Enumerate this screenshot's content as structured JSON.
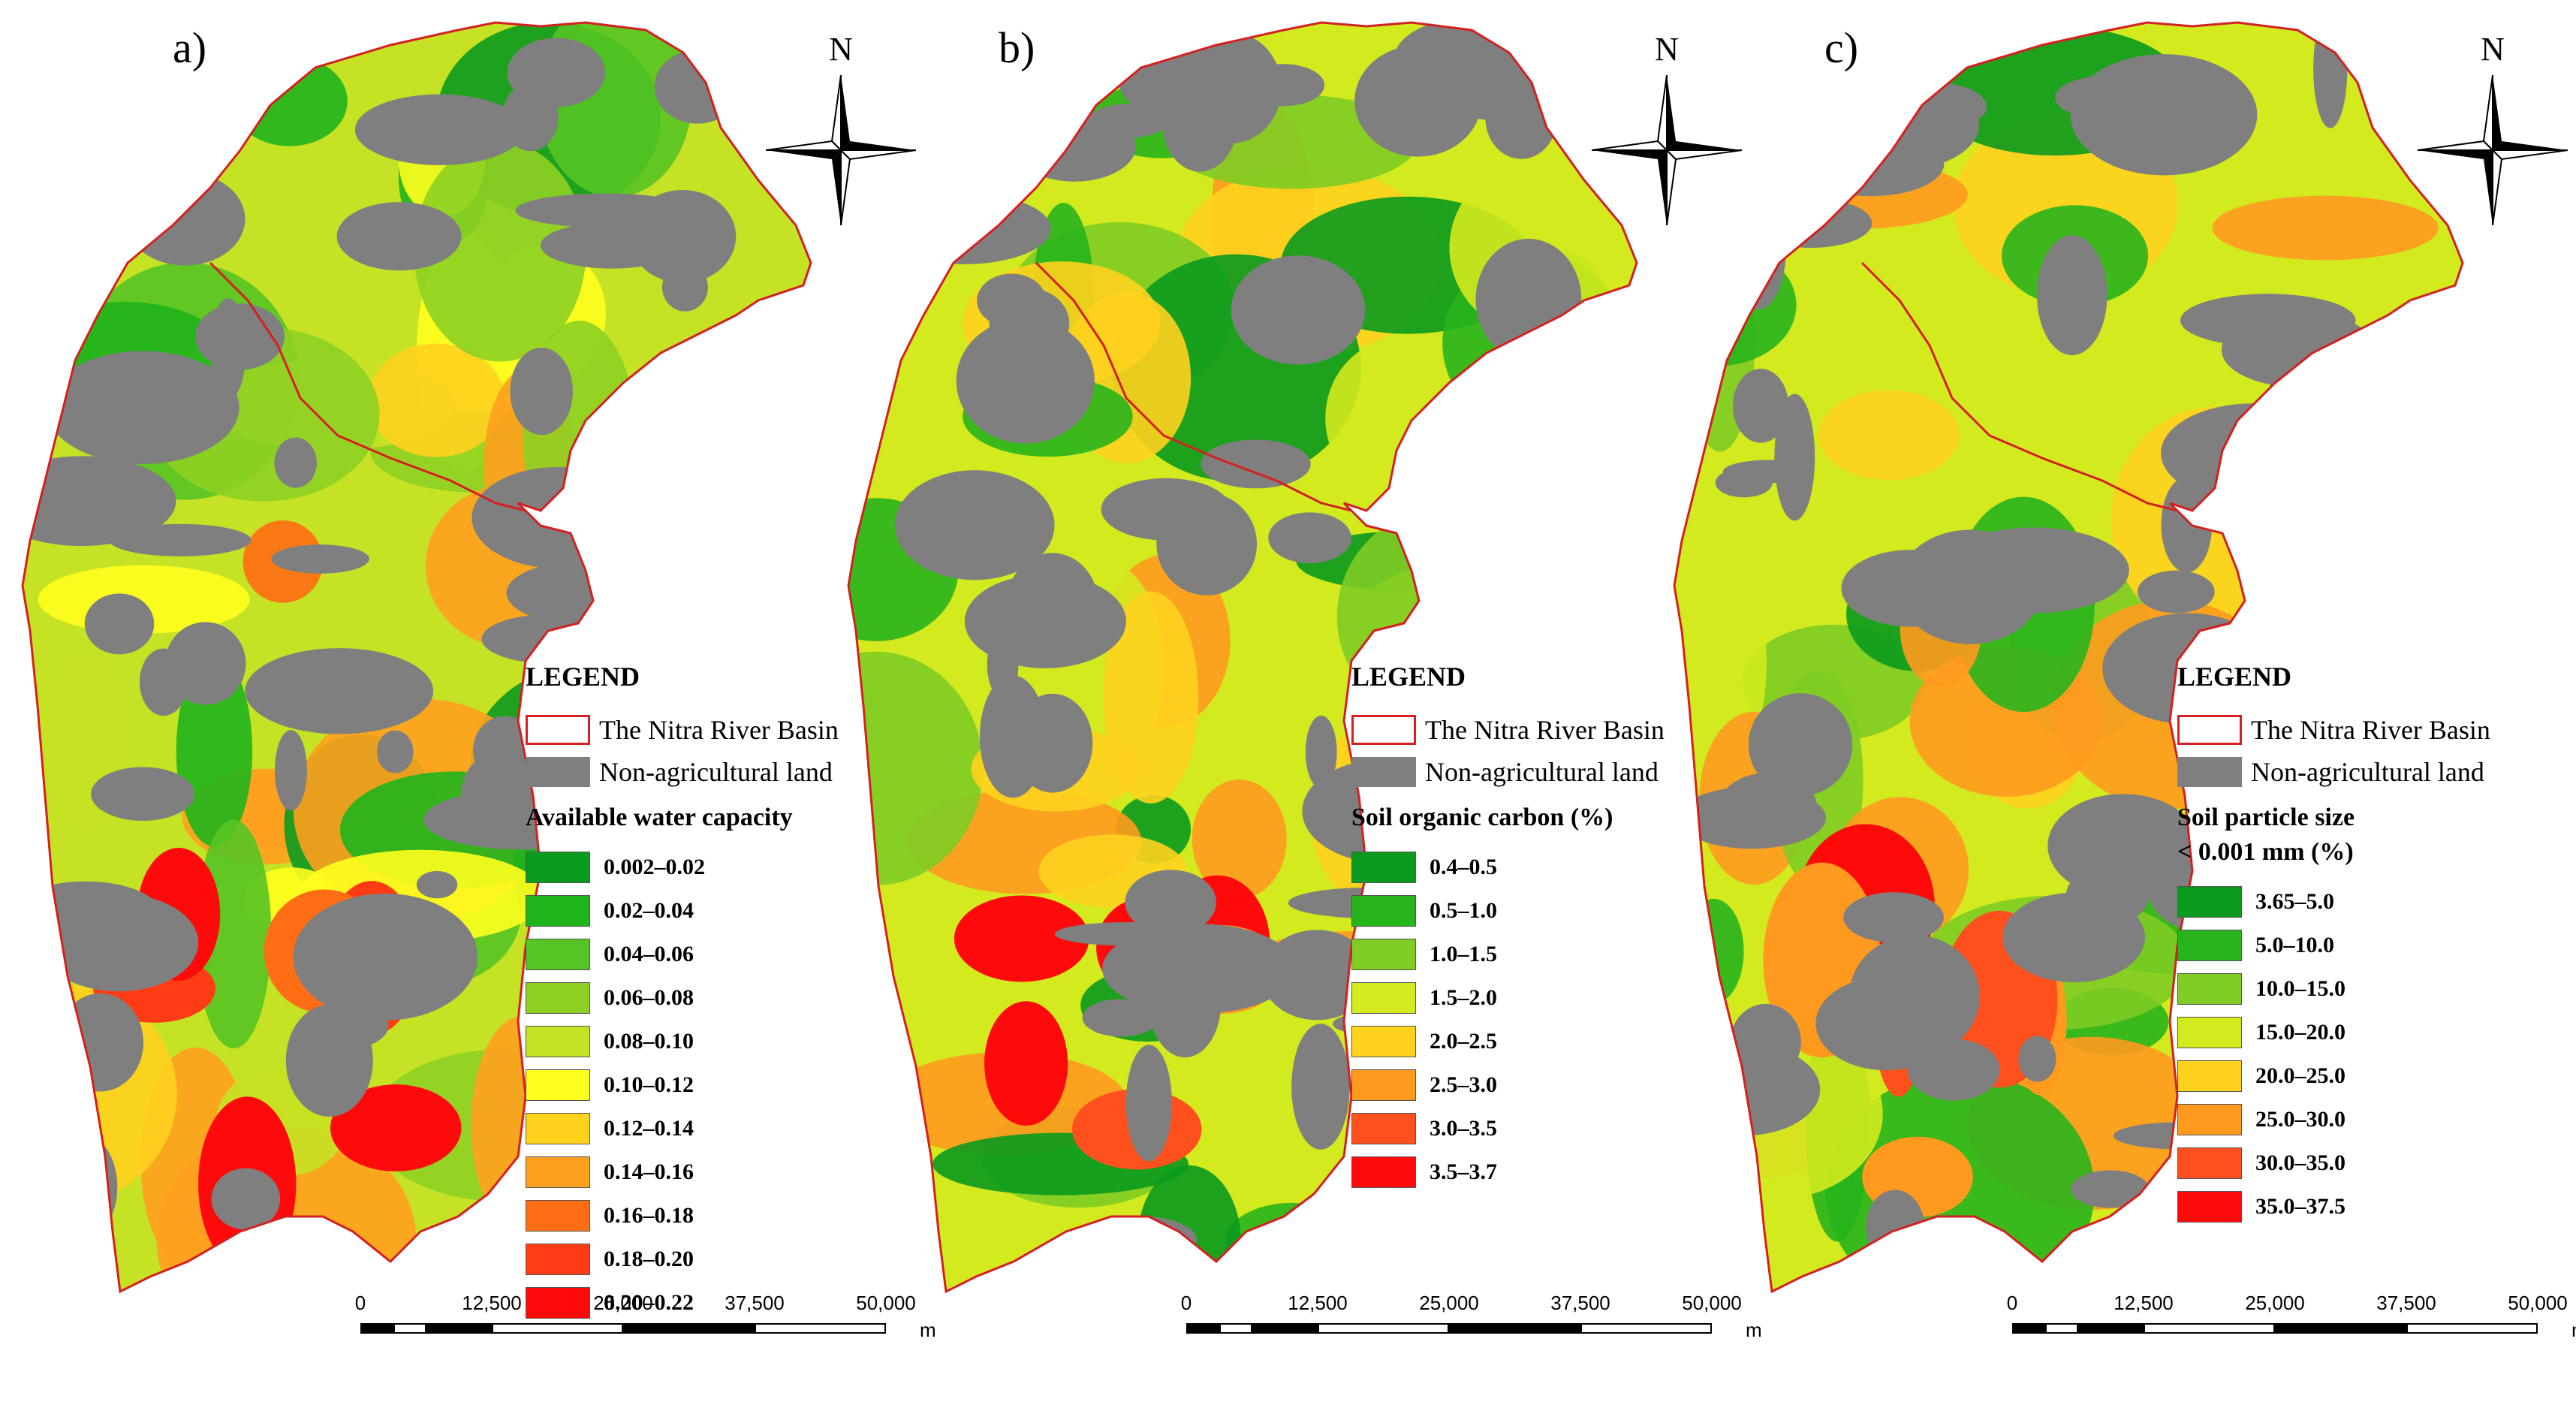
{
  "north_label": "N",
  "legend_title": "LEGEND",
  "basin_label": "The Nitra River Basin",
  "nonag_label": "Non-agricultural land",
  "scale_ticks": [
    "0",
    "12,500",
    "25,000",
    "37,500",
    "50,000"
  ],
  "scale_unit": "m",
  "colors": {
    "basin_outline": "#d42020",
    "non_agricultural": "#7f7f7f"
  },
  "panels": [
    {
      "label": "a)",
      "subtitle": "Available water capacity",
      "classes": [
        {
          "label": "0.002–0.02",
          "color": "#0a9a1e"
        },
        {
          "label": "0.02–0.04",
          "color": "#20b41c"
        },
        {
          "label": "0.04–0.06",
          "color": "#56c424"
        },
        {
          "label": "0.06–0.08",
          "color": "#8ed024"
        },
        {
          "label": "0.08–0.10",
          "color": "#c6e224"
        },
        {
          "label": "0.10–0.12",
          "color": "#ffff1e"
        },
        {
          "label": "0.12–0.14",
          "color": "#ffd21e"
        },
        {
          "label": "0.14–0.16",
          "color": "#ffa01e"
        },
        {
          "label": "0.16–0.18",
          "color": "#ff6e14"
        },
        {
          "label": "0.18–0.20",
          "color": "#ff3c14"
        },
        {
          "label": "0.20–0.22",
          "color": "#ff0a0a"
        }
      ]
    },
    {
      "label": "b)",
      "subtitle": "Soil organic carbon (%)",
      "classes": [
        {
          "label": "0.4–0.5",
          "color": "#0a9a1e"
        },
        {
          "label": "0.5–1.0",
          "color": "#28b41c"
        },
        {
          "label": "1.0–1.5",
          "color": "#7ecc24"
        },
        {
          "label": "1.5–2.0",
          "color": "#d2ea1e"
        },
        {
          "label": "2.0–2.5",
          "color": "#ffd21e"
        },
        {
          "label": "2.5–3.0",
          "color": "#ff9a1e"
        },
        {
          "label": "3.0–3.5",
          "color": "#ff501e"
        },
        {
          "label": "3.5–3.7",
          "color": "#ff0a0a"
        }
      ]
    },
    {
      "label": "c)",
      "subtitle": "Soil particle size\n< 0.001 mm (%)",
      "classes": [
        {
          "label": "3.65–5.0",
          "color": "#0a9a1e"
        },
        {
          "label": "5.0–10.0",
          "color": "#28b41c"
        },
        {
          "label": "10.0–15.0",
          "color": "#7ecc24"
        },
        {
          "label": "15.0–20.0",
          "color": "#d2ea1e"
        },
        {
          "label": "20.0–25.0",
          "color": "#ffd21e"
        },
        {
          "label": "25.0–30.0",
          "color": "#ff9a1e"
        },
        {
          "label": "30.0–35.0",
          "color": "#ff501e"
        },
        {
          "label": "35.0–37.5",
          "color": "#ff0a0a"
        }
      ]
    }
  ]
}
